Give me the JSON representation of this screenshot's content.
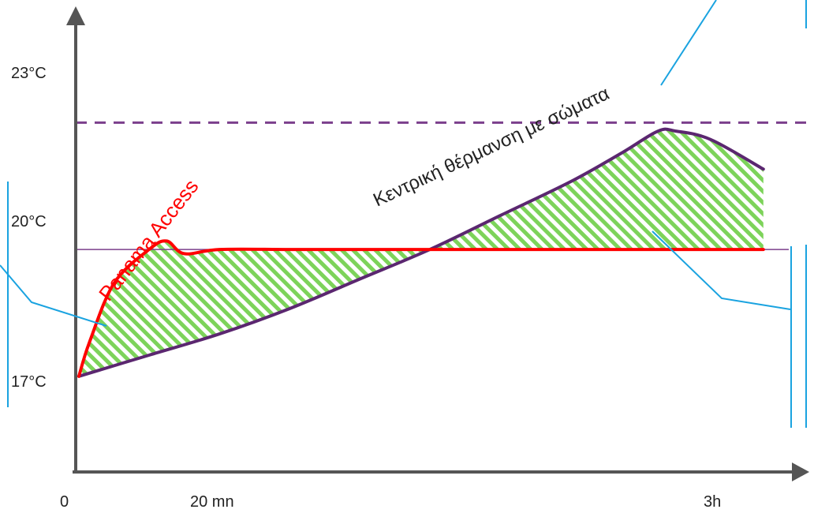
{
  "chart_data": {
    "type": "line",
    "x_tick_labels": [
      "0",
      "20 mn",
      "3h"
    ],
    "x_tick_values": [
      0,
      20,
      180
    ],
    "y_tick_labels": [
      "17°C",
      "20°C",
      "23°C"
    ],
    "y_tick_values": [
      17,
      20,
      23
    ],
    "xlim": [
      0,
      200
    ],
    "ylim": [
      14.7,
      25.9
    ],
    "grid": false,
    "series": [
      {
        "name": "Panama Access",
        "color": "#ff0000",
        "x": [
          0,
          3,
          10,
          20,
          25,
          30,
          40,
          60,
          80,
          100,
          120,
          140,
          160,
          180,
          195
        ],
        "y": [
          17.0,
          17.8,
          19.2,
          20.0,
          20.2,
          19.9,
          20.0,
          20.0,
          20.0,
          20.0,
          20.0,
          20.0,
          20.0,
          20.0,
          20.0
        ]
      },
      {
        "name": "Κεντρική θέρμανση με σώματα",
        "color": "#5b2770",
        "x": [
          0,
          20,
          40,
          60,
          80,
          100,
          120,
          140,
          155,
          165,
          170,
          180,
          195
        ],
        "y": [
          17.0,
          17.5,
          18.0,
          18.6,
          19.3,
          20.0,
          20.8,
          21.6,
          22.3,
          22.8,
          22.8,
          22.6,
          21.9
        ]
      }
    ],
    "reference_lines": [
      {
        "y": 23,
        "style": "dashed",
        "color": "#7b3f8c"
      },
      {
        "y": 20,
        "style": "solid",
        "color": "#7b3f8c"
      }
    ],
    "shaded_area": {
      "between": [
        "Panama Access",
        "Κεντρική θέρμανση με σώματα"
      ],
      "fill": "green-diagonal-hatch",
      "color": "#7dd35a"
    },
    "callout_color": "#1aa3e0"
  }
}
